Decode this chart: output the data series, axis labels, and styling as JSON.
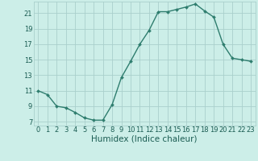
{
  "x": [
    0,
    1,
    2,
    3,
    4,
    5,
    6,
    7,
    8,
    9,
    10,
    11,
    12,
    13,
    14,
    15,
    16,
    17,
    18,
    19,
    20,
    21,
    22,
    23
  ],
  "y": [
    11,
    10.5,
    9,
    8.8,
    8.2,
    7.5,
    7.2,
    7.2,
    9.2,
    12.7,
    14.8,
    17.0,
    18.8,
    21.2,
    21.2,
    21.5,
    21.8,
    22.2,
    21.3,
    20.5,
    17.0,
    15.2,
    15.0,
    14.8
  ],
  "xlabel": "Humidex (Indice chaleur)",
  "ylim": [
    6.5,
    22.5
  ],
  "xlim": [
    -0.5,
    23.5
  ],
  "yticks": [
    7,
    9,
    11,
    13,
    15,
    17,
    19,
    21
  ],
  "xticks": [
    0,
    1,
    2,
    3,
    4,
    5,
    6,
    7,
    8,
    9,
    10,
    11,
    12,
    13,
    14,
    15,
    16,
    17,
    18,
    19,
    20,
    21,
    22,
    23
  ],
  "line_color": "#2e7d6e",
  "marker": "D",
  "marker_size": 2.0,
  "bg_color": "#cceee8",
  "grid_color": "#aad0cc",
  "axis_label_color": "#1a5c52",
  "tick_label_color": "#1a5c52",
  "xlabel_fontsize": 7.5,
  "tick_fontsize": 6.0,
  "line_width": 1.0
}
